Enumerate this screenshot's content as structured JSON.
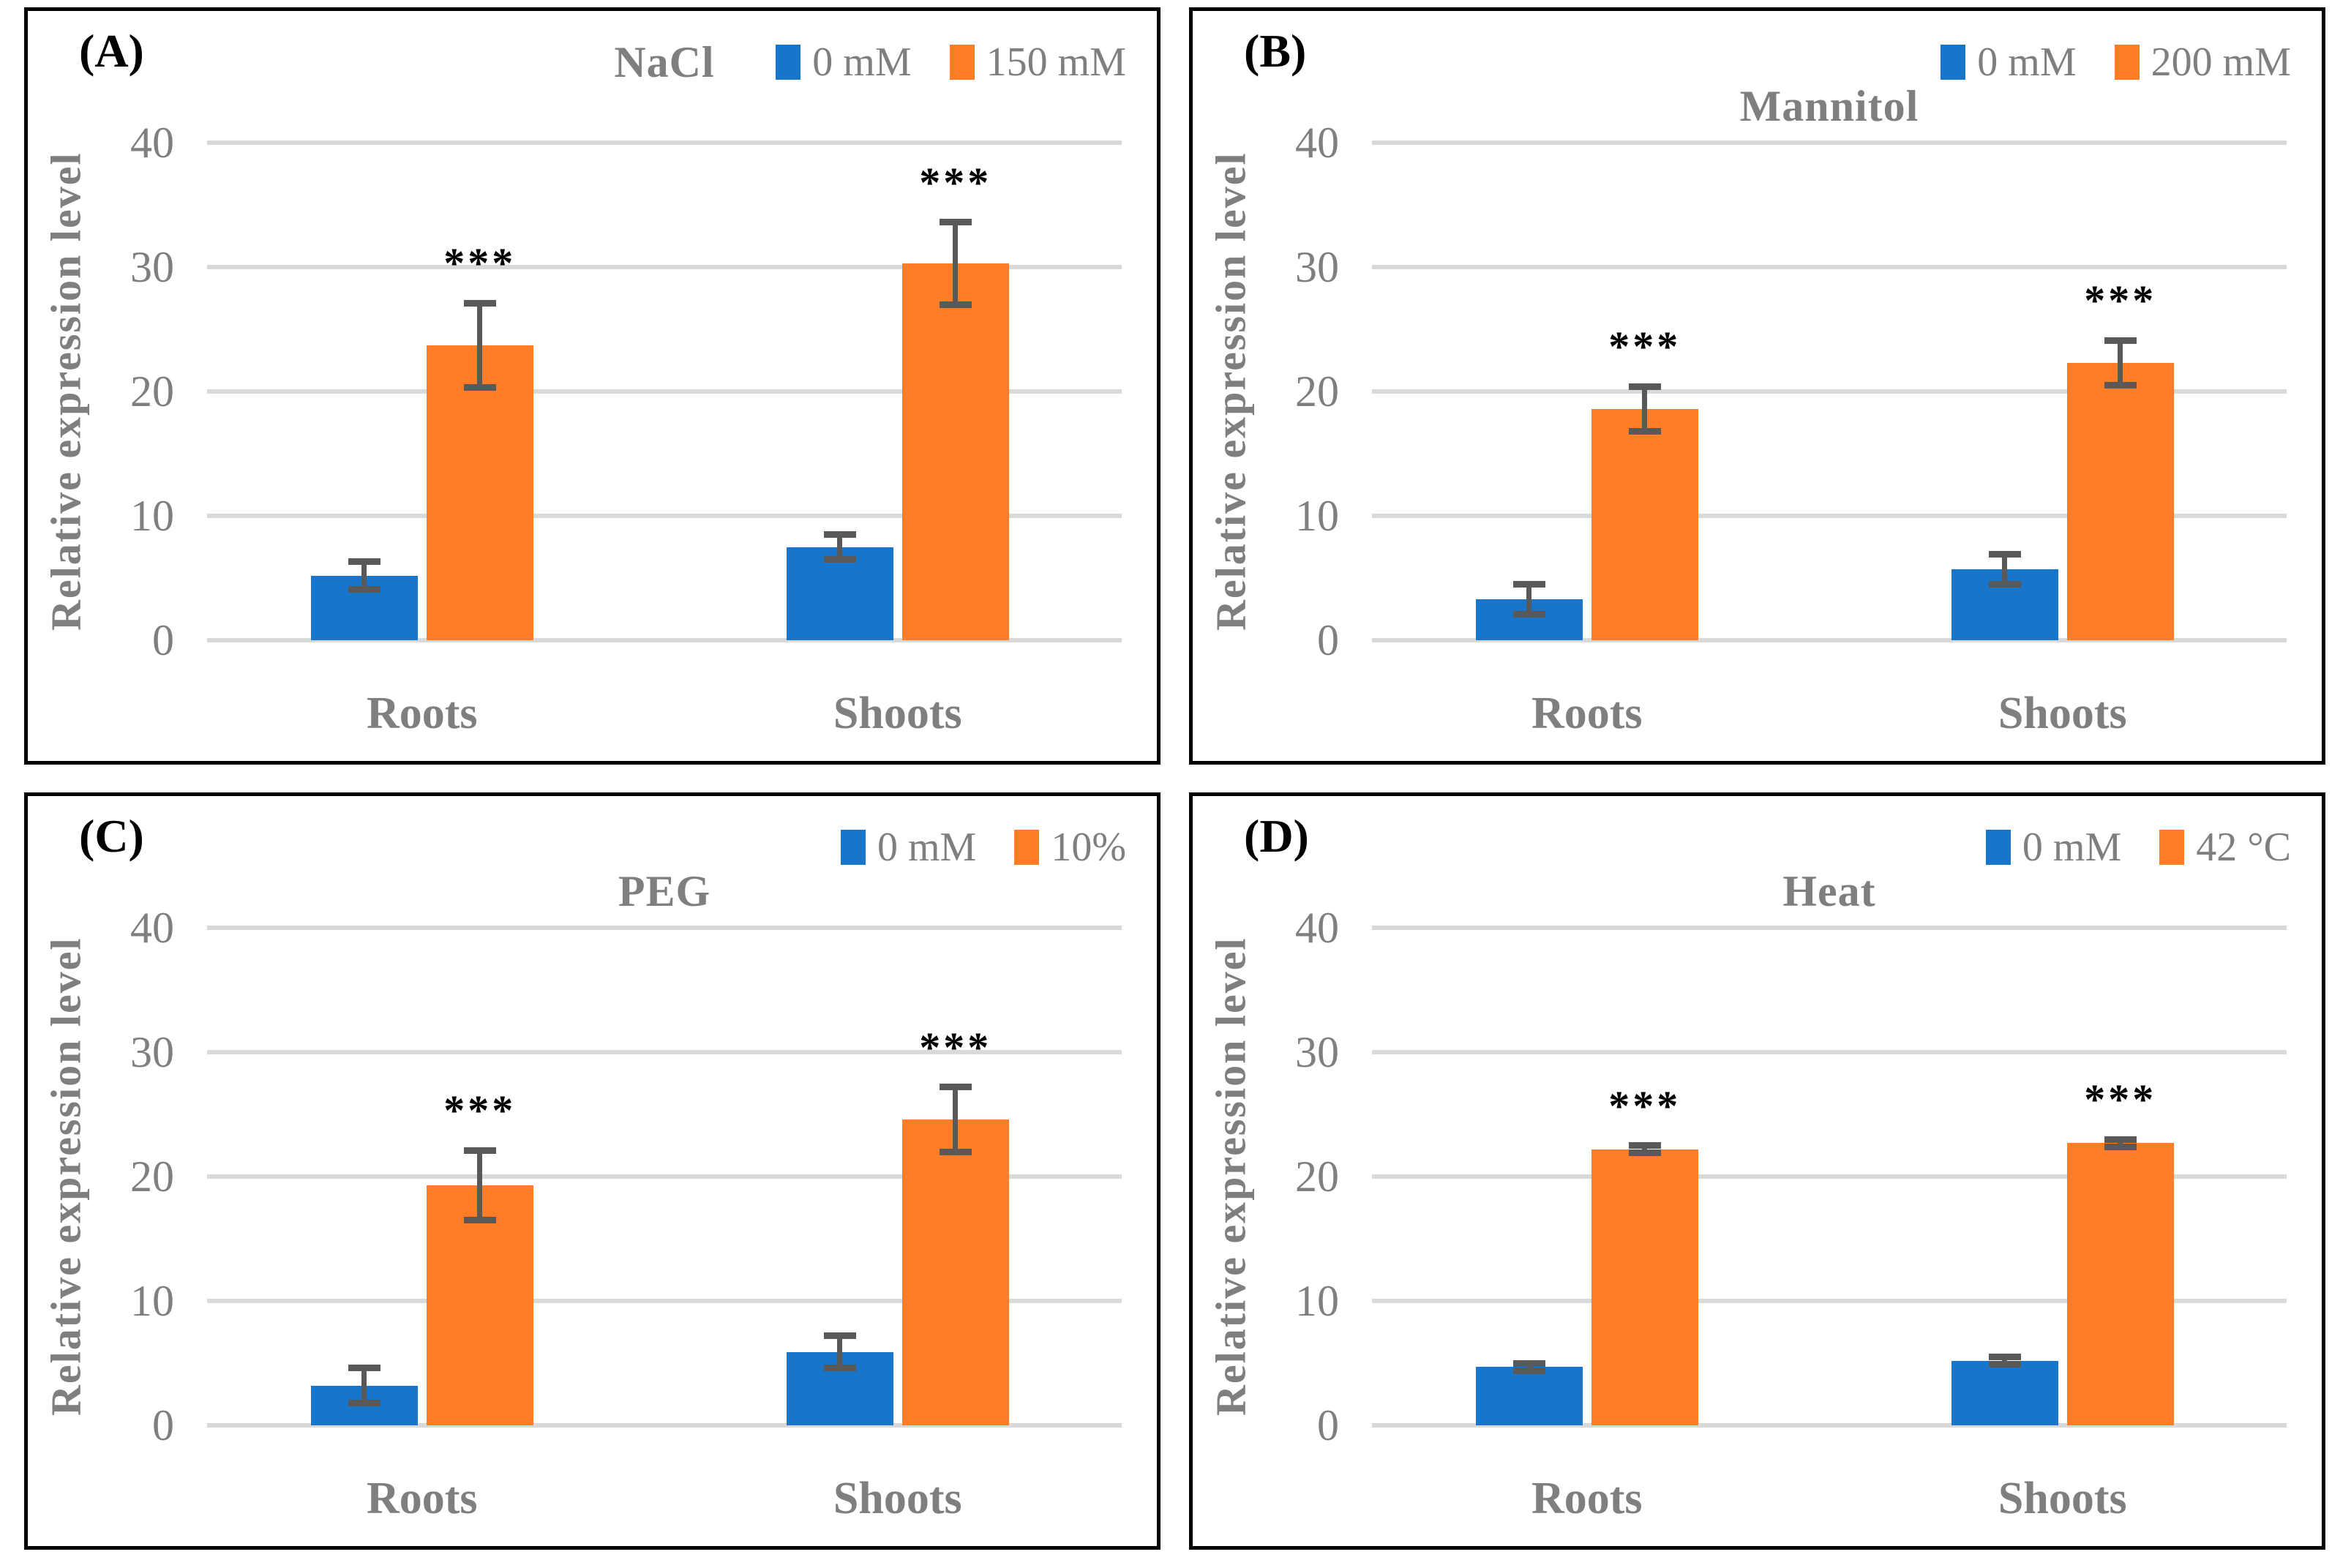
{
  "figure": {
    "ylabel": "Relative expression level",
    "categories": [
      "Roots",
      "Shoots"
    ]
  },
  "colors": {
    "control": "#1875C9",
    "treatment": "#FD7E26",
    "grid": "#D9D9D9",
    "error_bar": "#595959",
    "axis_text": "#7F7F7F",
    "significance": "#000000"
  },
  "chart_data": [
    {
      "type": "bar",
      "panel_label": "(A)",
      "title": "NaCl",
      "categories": [
        "Roots",
        "Shoots"
      ],
      "ylabel": "Relative expression level",
      "ylim": [
        0,
        40
      ],
      "yticks": [
        0,
        10,
        20,
        30,
        40
      ],
      "legend_position": "top-right",
      "grid": true,
      "series": [
        {
          "name": "0 mM",
          "role": "control",
          "values": [
            5.2,
            7.5
          ],
          "errors": [
            1.1,
            1.0
          ],
          "significance": [
            "",
            ""
          ]
        },
        {
          "name": "150 mM",
          "role": "treatment",
          "values": [
            23.7,
            30.3
          ],
          "errors": [
            3.4,
            3.3
          ],
          "significance": [
            "***",
            "***"
          ]
        }
      ]
    },
    {
      "type": "bar",
      "panel_label": "(B)",
      "title": "Mannitol",
      "categories": [
        "Roots",
        "Shoots"
      ],
      "ylabel": "Relative expression level",
      "ylim": [
        0,
        40
      ],
      "yticks": [
        0,
        10,
        20,
        30,
        40
      ],
      "legend_position": "top-right",
      "grid": true,
      "series": [
        {
          "name": "0 mM",
          "role": "control",
          "values": [
            3.3,
            5.7
          ],
          "errors": [
            1.2,
            1.2
          ],
          "significance": [
            "",
            ""
          ]
        },
        {
          "name": "200 mM",
          "role": "treatment",
          "values": [
            18.6,
            22.3
          ],
          "errors": [
            1.8,
            1.8
          ],
          "significance": [
            "***",
            "***"
          ]
        }
      ]
    },
    {
      "type": "bar",
      "panel_label": "(C)",
      "title": "PEG",
      "categories": [
        "Roots",
        "Shoots"
      ],
      "ylabel": "Relative expression level",
      "ylim": [
        0,
        40
      ],
      "yticks": [
        0,
        10,
        20,
        30,
        40
      ],
      "legend_position": "top-right",
      "grid": true,
      "series": [
        {
          "name": "0 mM",
          "role": "control",
          "values": [
            3.2,
            5.9
          ],
          "errors": [
            1.4,
            1.3
          ],
          "significance": [
            "",
            ""
          ]
        },
        {
          "name": "10%",
          "role": "treatment",
          "values": [
            19.3,
            24.6
          ],
          "errors": [
            2.8,
            2.6
          ],
          "significance": [
            "***",
            "***"
          ]
        }
      ]
    },
    {
      "type": "bar",
      "panel_label": "(D)",
      "title": "Heat",
      "categories": [
        "Roots",
        "Shoots"
      ],
      "ylabel": "Relative expression level",
      "ylim": [
        0,
        40
      ],
      "yticks": [
        0,
        10,
        20,
        30,
        40
      ],
      "legend_position": "top-right",
      "grid": true,
      "series": [
        {
          "name": "0 mM",
          "role": "control",
          "values": [
            4.7,
            5.2
          ],
          "errors": [
            0.3,
            0.3
          ],
          "significance": [
            "",
            ""
          ]
        },
        {
          "name": "42 °C",
          "role": "treatment",
          "values": [
            22.2,
            22.7
          ],
          "errors": [
            0.3,
            0.3
          ],
          "significance": [
            "***",
            "***"
          ]
        }
      ]
    }
  ]
}
